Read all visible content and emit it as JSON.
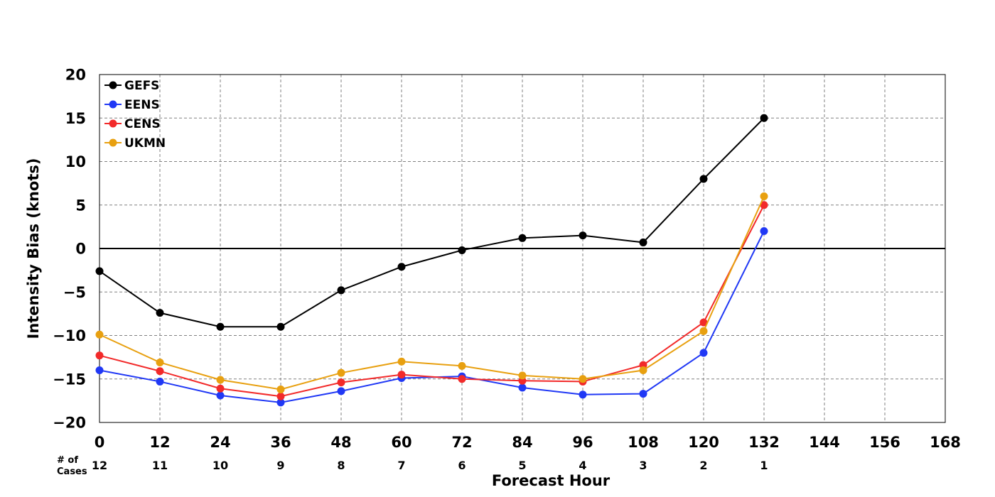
{
  "chart_data": {
    "type": "line",
    "title": "",
    "xlabel": "Forecast Hour",
    "ylabel": "Intensity Bias (knots)",
    "xlim": [
      0,
      168
    ],
    "ylim": [
      -20,
      20
    ],
    "x_ticks": [
      0,
      12,
      24,
      36,
      48,
      60,
      72,
      84,
      96,
      108,
      120,
      132,
      144,
      156,
      168
    ],
    "y_ticks": [
      20,
      15,
      10,
      5,
      0,
      -5,
      -10,
      -15,
      -20
    ],
    "x_tick_labels": [
      "0",
      "12",
      "24",
      "36",
      "48",
      "60",
      "72",
      "84",
      "96",
      "108",
      "120",
      "132",
      "144",
      "156",
      "168"
    ],
    "y_tick_labels": [
      "20",
      "15",
      "10",
      "5",
      "0",
      "−5",
      "−10",
      "−15",
      "−20"
    ],
    "grid": true,
    "legend_position": "top-left",
    "zero_line": true,
    "x": [
      0,
      12,
      24,
      36,
      48,
      60,
      72,
      84,
      96,
      108,
      120,
      132
    ],
    "series": [
      {
        "name": "GEFS",
        "color": "#000000",
        "values": [
          -2.6,
          -7.4,
          -9.0,
          -9.0,
          -4.8,
          -2.1,
          -0.2,
          1.2,
          1.5,
          0.7,
          8.0,
          15.0
        ]
      },
      {
        "name": "EENS",
        "color": "#2038f5",
        "values": [
          -14.0,
          -15.3,
          -16.9,
          -17.7,
          -16.4,
          -14.9,
          -14.7,
          -16.0,
          -16.8,
          -16.7,
          -12.0,
          2.0
        ]
      },
      {
        "name": "CENS",
        "color": "#f22a2a",
        "values": [
          -12.3,
          -14.1,
          -16.1,
          -17.0,
          -15.4,
          -14.5,
          -15.0,
          -15.2,
          -15.3,
          -13.4,
          -8.5,
          5.0
        ]
      },
      {
        "name": "UKMN",
        "color": "#e8a010",
        "values": [
          -9.9,
          -13.1,
          -15.1,
          -16.2,
          -14.3,
          -13.0,
          -13.5,
          -14.6,
          -15.0,
          -14.0,
          -9.5,
          6.0
        ]
      }
    ],
    "cases": {
      "label_line1": "# of",
      "label_line2": "Cases",
      "x": [
        0,
        12,
        24,
        36,
        48,
        60,
        72,
        84,
        96,
        108,
        120,
        132
      ],
      "values": [
        "12",
        "11",
        "10",
        "9",
        "8",
        "7",
        "6",
        "5",
        "4",
        "3",
        "2",
        "1"
      ]
    }
  }
}
